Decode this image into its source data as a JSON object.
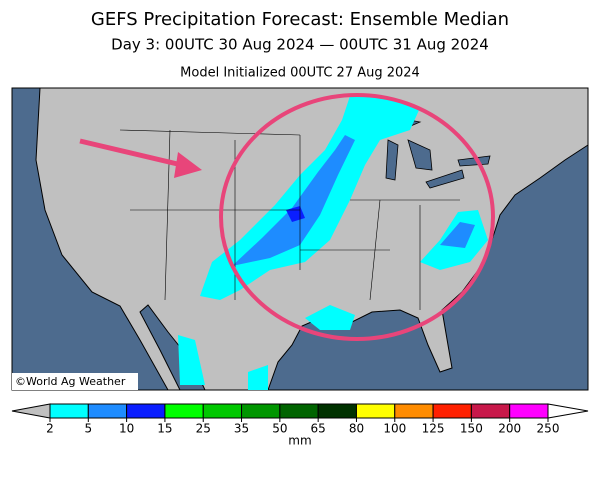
{
  "header": {
    "title": "GEFS Precipitation Forecast: Ensemble Median",
    "subtitle": "Day 3: 00UTC 30 Aug 2024 — 00UTC 31 Aug 2024",
    "initialized": "Model Initialized 00UTC 27 Aug 2024"
  },
  "map": {
    "credit": "©World Ag Weather"
  },
  "legend": {
    "ticks": [
      2,
      5,
      10,
      15,
      25,
      35,
      50,
      65,
      80,
      100,
      125,
      150,
      200,
      250
    ],
    "colors": [
      "#00ffff",
      "#1e8cff",
      "#0a1eff",
      "#00ff00",
      "#00c800",
      "#009600",
      "#006400",
      "#003200",
      "#ffff00",
      "#ff8c00",
      "#ff2000",
      "#c8184a",
      "#ff00ff",
      "#9955cc"
    ],
    "below_color": "#c0c0c0",
    "above_color": "#ffffff",
    "unit": "mm"
  }
}
